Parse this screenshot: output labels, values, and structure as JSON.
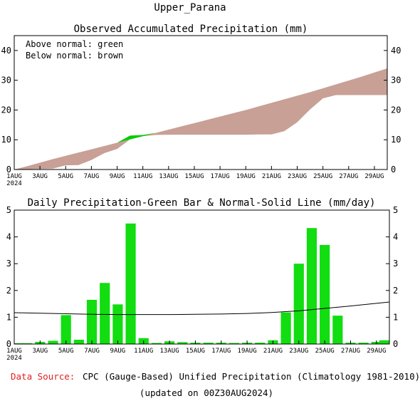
{
  "page_title": "Upper_Parana",
  "colors": {
    "above_fill": "#00cc00",
    "below_fill": "#c8a096",
    "bar": "#11dd11",
    "normal_line": "#000000",
    "source_label": "#dd2222"
  },
  "chart_data": [
    {
      "type": "area",
      "title": "Observed Accumulated Precipitation (mm)",
      "legend": [
        "Above normal: green",
        "Below normal: brown"
      ],
      "legend_position": "top-left",
      "x_range": [
        1,
        30
      ],
      "ylim": [
        0,
        45
      ],
      "y_ticks": [
        "0",
        "10",
        "20",
        "30",
        "40"
      ],
      "x_ticks": [
        "1AUG",
        "3AUG",
        "5AUG",
        "7AUG",
        "9AUG",
        "11AUG",
        "13AUG",
        "15AUG",
        "17AUG",
        "19AUG",
        "21AUG",
        "23AUG",
        "25AUG",
        "27AUG",
        "29AUG"
      ],
      "x_tick_days": [
        1,
        3,
        5,
        7,
        9,
        11,
        13,
        15,
        17,
        19,
        21,
        23,
        25,
        27,
        29
      ],
      "x_year_label": "2024",
      "series": [
        {
          "name": "Observed",
          "x": [
            1,
            2,
            3,
            4,
            5,
            6,
            7,
            8,
            9,
            10,
            11,
            12,
            13,
            14,
            15,
            16,
            17,
            18,
            19,
            20,
            21,
            22,
            23,
            24,
            25,
            26,
            27,
            28,
            29,
            30
          ],
          "values": [
            0,
            0.1,
            0.2,
            0.3,
            1.4,
            1.5,
            3.2,
            5.5,
            6.9,
            11.4,
            11.6,
            11.6,
            11.7,
            11.7,
            11.7,
            11.7,
            11.7,
            11.7,
            11.7,
            11.8,
            11.8,
            12.9,
            15.9,
            20.2,
            23.9,
            25.0,
            25.0,
            25.0,
            25.0,
            25.0
          ]
        },
        {
          "name": "Normal",
          "x": [
            1,
            2,
            3,
            4,
            5,
            6,
            7,
            8,
            9,
            10,
            11,
            12,
            13,
            14,
            15,
            16,
            17,
            18,
            19,
            20,
            21,
            22,
            23,
            24,
            25,
            26,
            27,
            28,
            29,
            30
          ],
          "values": [
            0,
            1.1,
            2.3,
            3.5,
            4.6,
            5.7,
            6.8,
            7.9,
            9.0,
            10.1,
            11.2,
            12.3,
            13.4,
            14.5,
            15.6,
            16.7,
            17.8,
            18.9,
            20.0,
            21.2,
            22.4,
            23.6,
            24.8,
            26.0,
            27.3,
            28.6,
            29.9,
            31.2,
            32.6,
            34.0
          ]
        }
      ]
    },
    {
      "type": "bar",
      "title": "Daily Precipitation-Green Bar & Normal-Solid Line (mm/day)",
      "x_range": [
        1,
        30
      ],
      "ylim": [
        0,
        5
      ],
      "y_ticks": [
        "0",
        "1",
        "2",
        "3",
        "4",
        "5"
      ],
      "x_ticks": [
        "1AUG",
        "3AUG",
        "5AUG",
        "7AUG",
        "9AUG",
        "11AUG",
        "13AUG",
        "15AUG",
        "17AUG",
        "19AUG",
        "21AUG",
        "23AUG",
        "25AUG",
        "27AUG",
        "29AUG"
      ],
      "x_tick_days": [
        1,
        3,
        5,
        7,
        9,
        11,
        13,
        15,
        17,
        19,
        21,
        23,
        25,
        27,
        29
      ],
      "x_year_label": "2024",
      "series": [
        {
          "name": "Daily Precipitation",
          "x": [
            1,
            2,
            3,
            4,
            5,
            6,
            7,
            8,
            9,
            10,
            11,
            12,
            13,
            14,
            15,
            16,
            17,
            18,
            19,
            20,
            21,
            22,
            23,
            24,
            25,
            26,
            27,
            28,
            29,
            30
          ],
          "values": [
            0.03,
            0.03,
            0.08,
            0.12,
            1.08,
            0.16,
            1.65,
            2.28,
            1.48,
            4.5,
            0.22,
            0.04,
            0.1,
            0.07,
            0.05,
            0.05,
            0.05,
            0.04,
            0.05,
            0.05,
            0.14,
            1.18,
            3.0,
            4.33,
            3.7,
            1.06,
            0.05,
            0.05,
            0.08,
            0.14
          ]
        },
        {
          "name": "Normal",
          "x": [
            1,
            3,
            5,
            7,
            9,
            11,
            13,
            15,
            17,
            19,
            21,
            23,
            25,
            27,
            29,
            30
          ],
          "values": [
            1.17,
            1.15,
            1.13,
            1.11,
            1.1,
            1.1,
            1.1,
            1.11,
            1.12,
            1.14,
            1.18,
            1.24,
            1.33,
            1.42,
            1.52,
            1.57
          ]
        }
      ]
    }
  ],
  "source_label": "Data Source:",
  "source_text": "CPC (Gauge-Based) Unified Precipitation (Climatology 1981-2010)",
  "updated_text": "(updated on 00Z30AUG2024)"
}
